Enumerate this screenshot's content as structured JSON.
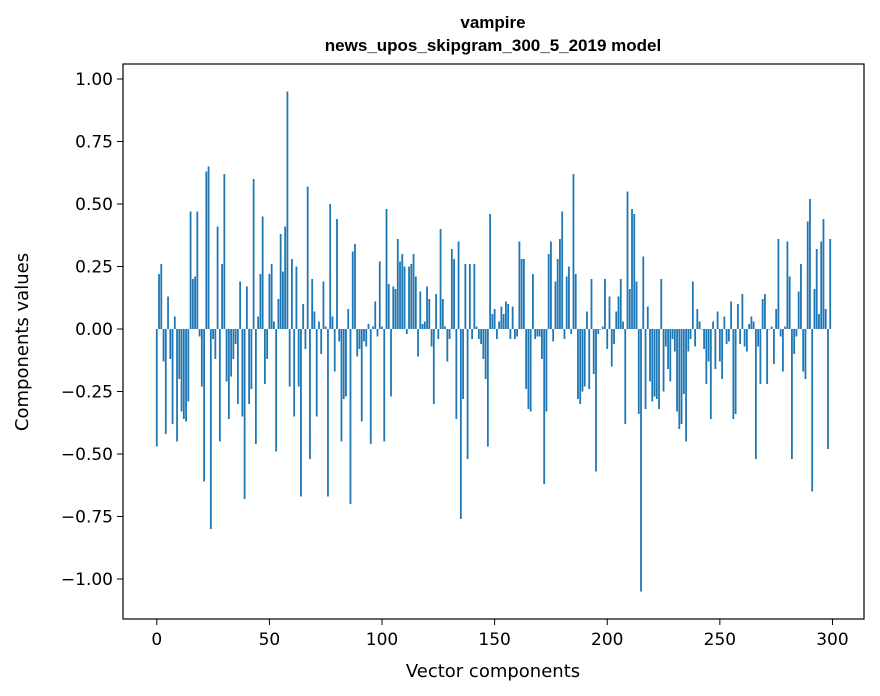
{
  "chart_data": {
    "type": "bar",
    "title": "vampire",
    "subtitle": "news_upos_skipgram_300_5_2019 model",
    "xlabel": "Vector components",
    "ylabel": "Components values",
    "xlim": [
      -15,
      314
    ],
    "ylim": [
      -1.16,
      1.06
    ],
    "xticks": [
      0,
      50,
      100,
      150,
      200,
      250,
      300
    ],
    "yticks": [
      1.0,
      0.75,
      0.5,
      0.25,
      0.0,
      -0.25,
      -0.5,
      -0.75,
      -1.0
    ],
    "ytick_labels": [
      "1.00",
      "0.75",
      "0.50",
      "0.25",
      "0.00",
      "−0.25",
      "−0.50",
      "−0.75",
      "−1.00"
    ],
    "bar_color": "#1f77b4",
    "grid": false,
    "x": "0..299 (component index)",
    "values": [
      -0.47,
      0.22,
      0.26,
      -0.13,
      -0.42,
      0.13,
      -0.12,
      -0.38,
      0.05,
      -0.45,
      -0.2,
      -0.33,
      -0.36,
      -0.37,
      -0.29,
      0.47,
      0.2,
      0.21,
      0.47,
      -0.03,
      -0.23,
      -0.61,
      0.63,
      0.65,
      -0.8,
      -0.04,
      -0.12,
      0.41,
      -0.45,
      0.26,
      0.62,
      -0.21,
      -0.36,
      -0.19,
      -0.12,
      -0.06,
      -0.3,
      0.19,
      -0.35,
      -0.68,
      0.17,
      -0.3,
      -0.24,
      0.6,
      -0.46,
      0.05,
      0.22,
      0.45,
      -0.22,
      -0.12,
      0.22,
      0.26,
      0.03,
      -0.49,
      0.12,
      0.38,
      0.23,
      0.41,
      0.95,
      -0.23,
      0.28,
      -0.35,
      0.25,
      -0.23,
      -0.67,
      0.1,
      -0.08,
      0.57,
      -0.52,
      0.2,
      0.07,
      -0.35,
      0.03,
      -0.1,
      0.19,
      0.01,
      -0.67,
      0.5,
      0.05,
      -0.17,
      0.44,
      -0.05,
      -0.45,
      -0.28,
      -0.27,
      0.08,
      -0.7,
      0.31,
      0.34,
      -0.11,
      -0.08,
      -0.37,
      -0.05,
      -0.07,
      0.02,
      -0.46,
      0.01,
      0.11,
      -0.03,
      0.27,
      0.01,
      -0.45,
      0.48,
      0.18,
      -0.27,
      0.17,
      0.16,
      0.36,
      0.27,
      0.3,
      0.25,
      -0.02,
      0.25,
      0.26,
      0.3,
      0.21,
      -0.11,
      0.15,
      0.02,
      0.03,
      0.17,
      0.12,
      -0.07,
      -0.3,
      0.14,
      -0.04,
      0.4,
      0.12,
      0.01,
      -0.13,
      -0.04,
      0.32,
      0.28,
      -0.36,
      0.35,
      -0.76,
      -0.28,
      0.26,
      -0.52,
      0.26,
      -0.04,
      0.26,
      0.01,
      -0.04,
      -0.06,
      -0.12,
      -0.2,
      -0.47,
      0.46,
      0.06,
      0.08,
      -0.04,
      0.03,
      0.09,
      0.06,
      0.11,
      0.1,
      -0.04,
      0.09,
      -0.04,
      -0.03,
      0.35,
      0.28,
      0.28,
      -0.24,
      -0.32,
      -0.33,
      0.22,
      -0.04,
      -0.03,
      -0.03,
      -0.12,
      -0.62,
      -0.33,
      0.3,
      0.35,
      -0.05,
      0.19,
      0.28,
      0.36,
      0.47,
      -0.04,
      0.21,
      0.25,
      -0.02,
      0.62,
      0.22,
      -0.28,
      -0.3,
      -0.25,
      -0.23,
      0.07,
      -0.24,
      0.2,
      -0.18,
      -0.57,
      -0.02,
      0.0,
      0.01,
      0.2,
      -0.08,
      0.13,
      -0.15,
      -0.06,
      0.07,
      0.13,
      0.2,
      0.03,
      -0.38,
      0.55,
      0.16,
      0.48,
      0.46,
      0.19,
      -0.34,
      -1.05,
      0.29,
      -0.32,
      0.09,
      -0.21,
      -0.29,
      -0.27,
      -0.28,
      -0.32,
      0.2,
      -0.25,
      -0.07,
      -0.16,
      -0.21,
      -0.04,
      -0.09,
      -0.33,
      -0.4,
      -0.38,
      -0.26,
      -0.45,
      -0.09,
      -0.04,
      0.19,
      -0.07,
      0.08,
      0.03,
      0.0,
      -0.08,
      -0.22,
      -0.13,
      -0.36,
      0.03,
      -0.16,
      0.07,
      -0.13,
      -0.2,
      0.05,
      -0.06,
      -0.05,
      0.11,
      -0.36,
      -0.34,
      0.1,
      -0.06,
      0.14,
      -0.07,
      -0.09,
      0.02,
      0.05,
      0.03,
      -0.52,
      -0.07,
      -0.22,
      0.12,
      0.14,
      -0.22,
      0.0,
      0.01,
      -0.14,
      0.08,
      0.36,
      -0.03,
      -0.17,
      0.01,
      0.35,
      0.21,
      -0.52,
      -0.1,
      -0.03,
      0.15,
      0.26,
      -0.17,
      -0.2,
      0.43,
      0.52,
      -0.65,
      0.16,
      0.32,
      0.06,
      0.35,
      0.44,
      0.08,
      -0.48,
      0.36
    ]
  }
}
